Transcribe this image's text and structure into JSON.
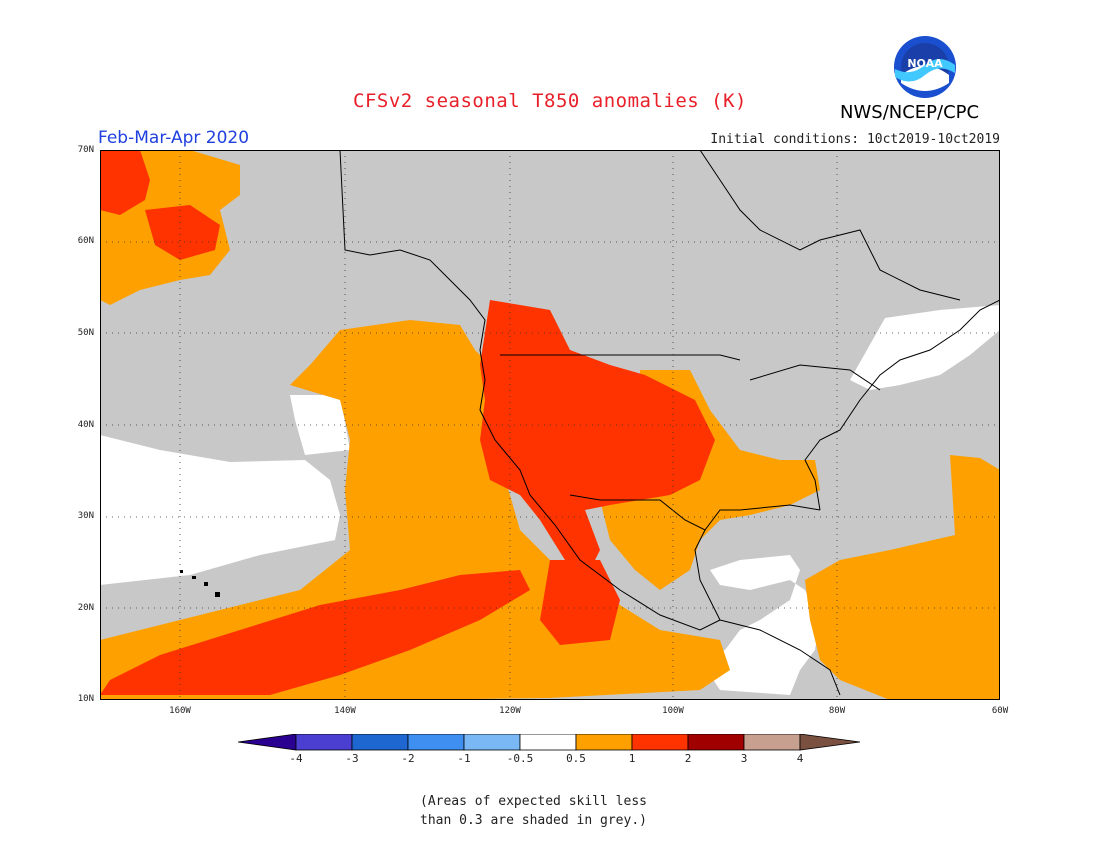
{
  "header": {
    "title": "CFSv2 seasonal T850 anomalies (K)",
    "agency": "NWS/NCEP/CPC",
    "period": "Feb-Mar-Apr 2020",
    "initial_conditions": "Initial conditions: 10ct2019-10ct2019"
  },
  "logo": {
    "text": "NOAA"
  },
  "map": {
    "lat_labels": [
      "70N",
      "60N",
      "50N",
      "40N",
      "30N",
      "20N",
      "10N"
    ],
    "lon_labels": [
      "160W",
      "140W",
      "120W",
      "100W",
      "80W",
      "60W"
    ],
    "colors": {
      "grey": "#c8c8c8",
      "white": "#ffffff",
      "orange": "#fda000",
      "red": "#fe3300",
      "border": "#000000"
    }
  },
  "legend": {
    "tick_labels": [
      "-4",
      "-3",
      "-2",
      "-1",
      "-0.5",
      "0.5",
      "1",
      "2",
      "3",
      "4"
    ],
    "colors": [
      "#2a0090",
      "#4b3fd1",
      "#1e66d0",
      "#3f8ff0",
      "#7ab8f5",
      "#ffffff",
      "#fda000",
      "#fe3300",
      "#a00000",
      "#c8a090",
      "#7a5040"
    ]
  },
  "note": {
    "line1": "(Areas of expected skill less",
    "line2": "than 0.3 are shaded in grey.)"
  }
}
